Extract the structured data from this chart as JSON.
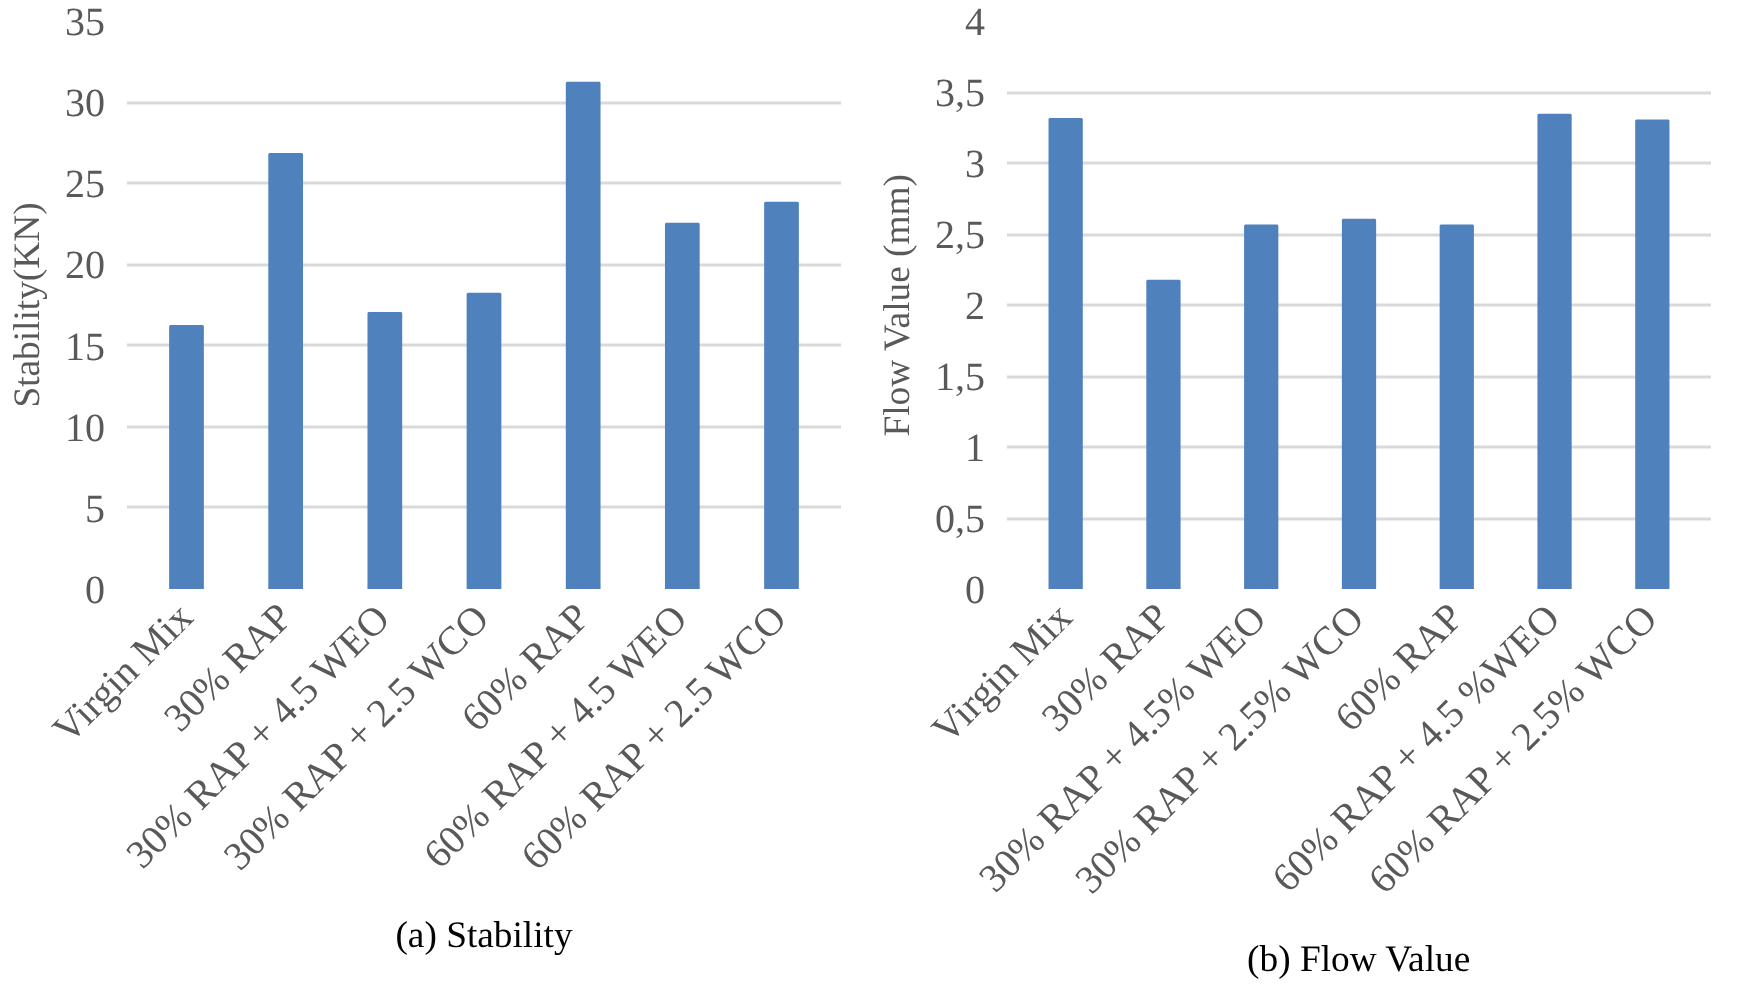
{
  "chart_data": [
    {
      "type": "bar",
      "title": "(a) Stability",
      "ylabel": "Stability(KN)",
      "categories": [
        "Virgin Mix",
        "30% RAP",
        "30% RAP + 4.5 WEO",
        "30% RAP + 2.5 WCO",
        "60% RAP",
        "60% RAP + 4.5 WEO",
        "60% RAP + 2.5 WCO"
      ],
      "values": [
        16.2,
        26.8,
        17.0,
        18.2,
        31.2,
        22.5,
        23.8
      ],
      "color": "#4f81bd",
      "ylim": [
        0,
        35
      ],
      "yticks": [
        0,
        5,
        10,
        15,
        20,
        25,
        30,
        35
      ],
      "grid": "y"
    },
    {
      "type": "bar",
      "title": "(b) Flow Value",
      "ylabel": "Flow Value (mm)",
      "categories": [
        "Virgin Mix",
        "30% RAP",
        "30% RAP + 4.5% WEO",
        "30% RAP + 2.5% WCO",
        "60% RAP",
        "60% RAP + 4.5 %WEO",
        "60% RAP + 2.5% WCO"
      ],
      "values": [
        3.31,
        2.17,
        2.56,
        2.6,
        2.56,
        3.34,
        3.3
      ],
      "color": "#4f81bd",
      "ylim": [
        0,
        4
      ],
      "yticks": [
        0,
        {
          "value": 0.5,
          "label": "0,5"
        },
        1,
        {
          "value": 1.5,
          "label": "1,5"
        },
        2,
        {
          "value": 2.5,
          "label": "2,5"
        },
        3,
        {
          "value": 3.5,
          "label": "3,5"
        },
        4
      ],
      "grid": "y"
    }
  ]
}
